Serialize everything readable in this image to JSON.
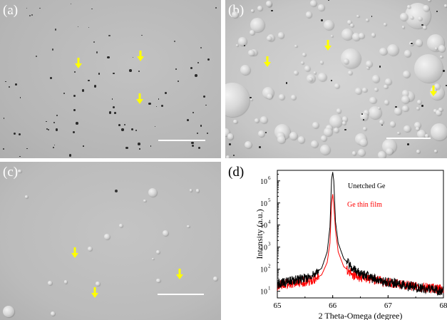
{
  "figure": {
    "panels": [
      {
        "label": "(a)",
        "type": "optical micrograph",
        "annotation_color": "#ffff00",
        "arrow_count": 3
      },
      {
        "label": "(b)",
        "type": "optical micrograph",
        "annotation_color": "#ffff00",
        "arrow_count": 3
      },
      {
        "label": "(c)",
        "type": "optical micrograph",
        "annotation_color": "#ffff00",
        "arrow_count": 3
      },
      {
        "label": "(d)",
        "type": "xrd-scan"
      }
    ]
  },
  "chart_data": {
    "type": "line",
    "xlabel": "2 Theta-Omega (degree)",
    "ylabel": "Intensity (a.u.)",
    "xlim": [
      65,
      68
    ],
    "ylim": [
      5,
      3000000
    ],
    "yscale": "log",
    "xticks": [
      "65",
      "66",
      "67",
      "68"
    ],
    "yticks": [
      "10",
      "10",
      "10",
      "10",
      "10",
      "10"
    ],
    "ytick_exponents": [
      "1",
      "2",
      "3",
      "4",
      "5",
      "6"
    ],
    "grid": false,
    "legend": "top-right, text labels",
    "series": [
      {
        "name": "Unetched Ge",
        "color": "#000000",
        "x": [
          65.0,
          65.3,
          65.6,
          65.8,
          65.9,
          65.95,
          65.98,
          66.0,
          66.02,
          66.05,
          66.1,
          66.2,
          66.4,
          66.7,
          67.0,
          67.5,
          68.0
        ],
        "y": [
          22,
          30,
          45,
          110,
          600,
          8000,
          1200000,
          2500000,
          1000000,
          15000,
          1500,
          300,
          90,
          40,
          25,
          15,
          10
        ]
      },
      {
        "name": "Ge thin film",
        "color": "#ff0000",
        "x": [
          65.0,
          65.3,
          65.6,
          65.8,
          65.9,
          65.95,
          65.98,
          66.0,
          66.02,
          66.05,
          66.1,
          66.2,
          66.4,
          66.7,
          67.0,
          67.5,
          68.0
        ],
        "y": [
          18,
          24,
          30,
          55,
          200,
          1500,
          100000,
          250000,
          80000,
          6000,
          600,
          130,
          50,
          35,
          25,
          16,
          12
        ]
      }
    ]
  }
}
